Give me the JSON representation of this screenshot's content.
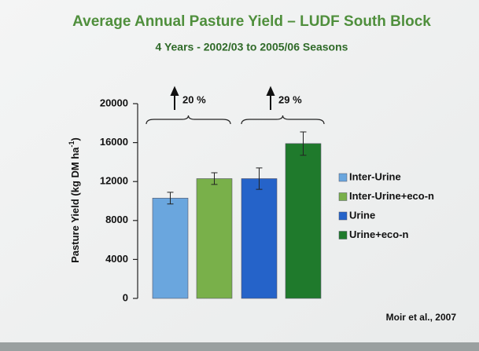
{
  "chart_data": {
    "type": "bar",
    "title": "Average Annual Pasture Yield – LUDF South Block",
    "subtitle": "4 Years - 2002/03 to 2005/06 Seasons",
    "ylabel": {
      "text": "Pasture Yield (kg DM ha",
      "superscript": "-1",
      "close": ")"
    },
    "ylim": [
      0,
      20000
    ],
    "yticks": [
      0,
      4000,
      8000,
      12000,
      16000,
      20000
    ],
    "series": [
      {
        "name": "Inter-Urine",
        "color": "#6aa6de",
        "values": [
          10300
        ],
        "errors": [
          600
        ]
      },
      {
        "name": "Inter-Urine+eco-n",
        "color": "#79b04a",
        "values": [
          12300
        ],
        "errors": [
          600
        ]
      },
      {
        "name": "Urine",
        "color": "#2563c9",
        "values": [
          12300
        ],
        "errors": [
          1100
        ]
      },
      {
        "name": "Urine+eco-n",
        "color": "#1f7a2c",
        "values": [
          15900
        ],
        "errors": [
          1200
        ]
      }
    ],
    "annotations": [
      {
        "text": "20 %"
      },
      {
        "text": "29 %"
      }
    ],
    "source": "Moir et al., 2007",
    "legend": "right"
  }
}
